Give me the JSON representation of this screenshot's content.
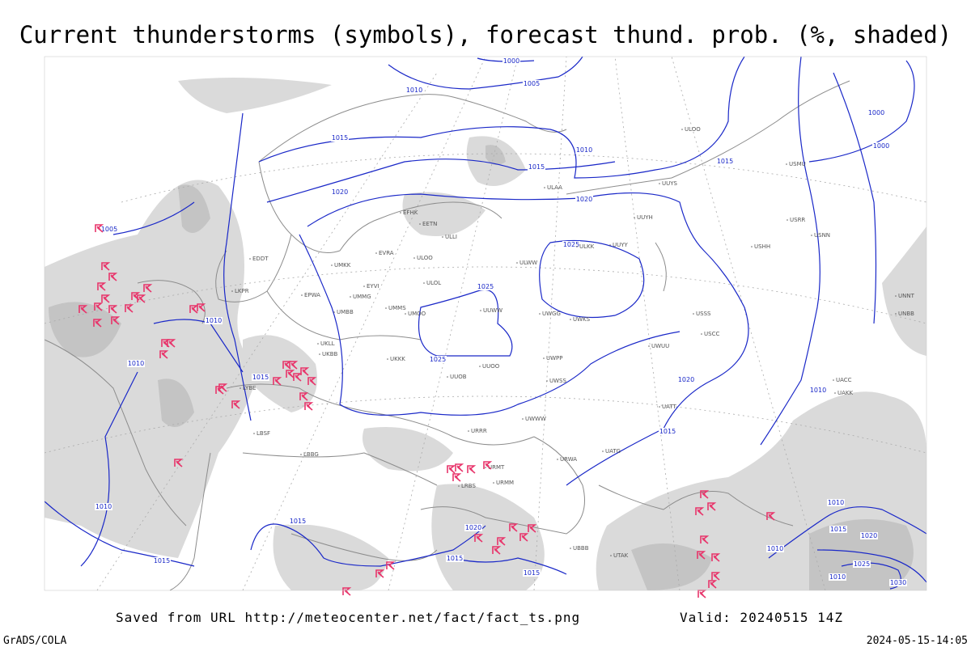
{
  "header": {
    "title": "Current thunderstorms (symbols), forecast thund. prob. (%, shaded)"
  },
  "isobar_labels": [
    "1000",
    "1005",
    "1010",
    "1015",
    "1010",
    "1015",
    "1015",
    "1020",
    "1020",
    "1025",
    "1025",
    "1025",
    "1005",
    "1010",
    "1010",
    "1015",
    "1020",
    "1015",
    "1010",
    "1000",
    "1000",
    "1010",
    "1015",
    "1015",
    "1020",
    "1015",
    "1015",
    "1010",
    "1015",
    "1020",
    "1025",
    "1030",
    "1010",
    "1010"
  ],
  "stations": [
    "ULOO",
    "UUYS",
    "ULAA",
    "UUYH",
    "ULKK",
    "UUYY",
    "ULLI",
    "EFHK",
    "EETN",
    "EVRA",
    "ULOO",
    "UMKK",
    "EDDT",
    "EYVI",
    "UMMG",
    "ULOL",
    "UMMS",
    "UMOO",
    "ULWW",
    "UUWW",
    "UWGG",
    "UWKS",
    "USSS",
    "USCC",
    "UWUU",
    "UKLL",
    "UKKK",
    "UUOB",
    "UUOO",
    "UWPP",
    "UWSS",
    "UWWW",
    "UATT",
    "UACC",
    "UAKK",
    "URRR",
    "URMT",
    "URMM",
    "URWA",
    "UATG",
    "UBBB",
    "UTAK",
    "USMU",
    "USRR",
    "USNN",
    "USHH",
    "UNNT",
    "UNBB",
    "LBSF",
    "LBBG",
    "LRBS",
    "LYBE",
    "LKPR",
    "EPWA",
    "UMBB",
    "UKBB"
  ],
  "footer": {
    "source": "Saved from URL  http://meteocenter.net/fact/fact_ts.png",
    "valid": "Valid: 20240515 14Z",
    "credit": "GrADS/COLA",
    "timestamp": "2024-05-15-14:05"
  }
}
